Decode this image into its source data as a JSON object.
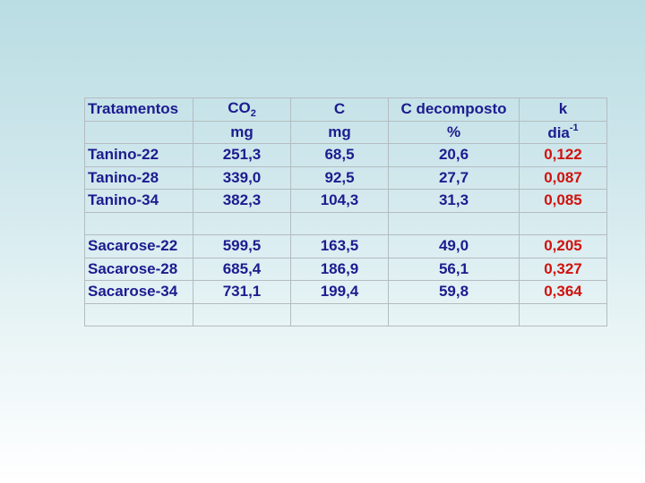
{
  "table": {
    "header": {
      "treatments": "Tratamentos",
      "co2_main": "CO",
      "co2_sub": "2",
      "c": "C",
      "c_decomposed": "C decomposto",
      "k": "k"
    },
    "units": {
      "treatments": "",
      "co2": "mg",
      "c": "mg",
      "c_decomposed": "%",
      "k_main": "dia",
      "k_sup": "-1"
    },
    "rows": [
      {
        "treatment": "Tanino-22",
        "co2": "251,3",
        "c": "68,5",
        "c_decomposed": "20,6",
        "k": "0,122"
      },
      {
        "treatment": "Tanino-28",
        "co2": "339,0",
        "c": "92,5",
        "c_decomposed": "27,7",
        "k": "0,087"
      },
      {
        "treatment": "Tanino-34",
        "co2": "382,3",
        "c": "104,3",
        "c_decomposed": "31,3",
        "k": "0,085"
      },
      {
        "treatment": "",
        "co2": "",
        "c": "",
        "c_decomposed": "",
        "k": ""
      },
      {
        "treatment": "Sacarose-22",
        "co2": "599,5",
        "c": "163,5",
        "c_decomposed": "49,0",
        "k": "0,205"
      },
      {
        "treatment": "Sacarose-28",
        "co2": "685,4",
        "c": "186,9",
        "c_decomposed": "56,1",
        "k": "0,327"
      },
      {
        "treatment": "Sacarose-34",
        "co2": "731,1",
        "c": "199,4",
        "c_decomposed": "59,8",
        "k": "0,364"
      },
      {
        "treatment": "",
        "co2": "",
        "c": "",
        "c_decomposed": "",
        "k": ""
      }
    ],
    "colors": {
      "text": "#1c1c8f",
      "k_values": "#d0120d",
      "grid": "#b3bcc0"
    }
  }
}
